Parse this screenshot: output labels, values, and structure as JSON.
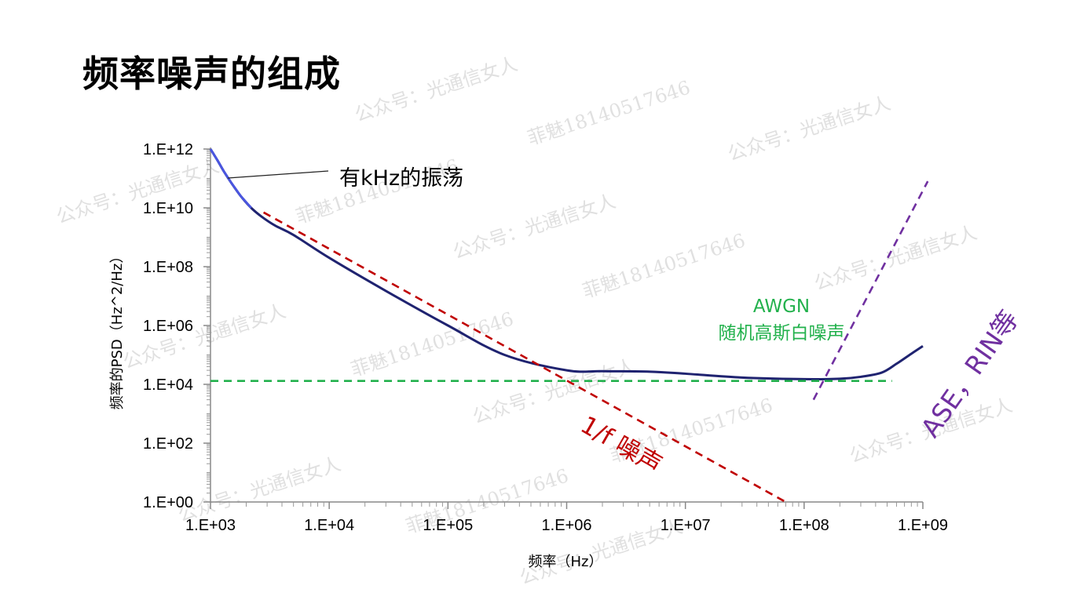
{
  "title": "频率噪声的组成",
  "chart_data": {
    "type": "line",
    "xscale": "log",
    "yscale": "log",
    "xlabel": "频率（Hz）",
    "ylabel": "频率的PSD（Hz^2/Hz）",
    "xlim": [
      1000,
      1000000000
    ],
    "ylim": [
      1,
      1000000000000
    ],
    "x_ticks": [
      "1.E+03",
      "1.E+04",
      "1.E+05",
      "1.E+06",
      "1.E+07",
      "1.E+08",
      "1.E+09"
    ],
    "y_ticks": [
      "1.E+00",
      "1.E+02",
      "1.E+04",
      "1.E+06",
      "1.E+08",
      "1.E+10",
      "1.E+12"
    ],
    "grid": false,
    "series": [
      {
        "color": "#1f2370",
        "style": "solid",
        "x": [
          1000,
          1150,
          1300,
          1500,
          1800,
          2200,
          2700,
          3500,
          5000,
          10000,
          30000,
          100000,
          300000,
          1000000,
          2000000,
          5000000,
          10000000,
          30000000,
          100000000,
          200000000,
          300000000,
          450000000,
          600000000,
          800000000,
          1000000000
        ],
        "y": [
          1000000000000,
          400000000000,
          170000000000,
          70000000000,
          25000000000,
          10000000000,
          5000000000,
          2500000000,
          1200000000,
          200000000,
          15000000,
          1000000,
          100000,
          30000,
          28000,
          27000,
          23000,
          17000,
          15000,
          15500,
          18000,
          25000,
          50000,
          110000,
          200000
        ]
      },
      {
        "color": "#c00000",
        "style": "dashed",
        "x": [
          2800,
          70000000
        ],
        "y": [
          7000000000,
          1
        ]
      },
      {
        "color": "#22b14c",
        "style": "dashed",
        "x": [
          1000,
          550000000
        ],
        "y": [
          13000,
          13000
        ]
      },
      {
        "color": "#7030a0",
        "style": "dashed",
        "x": [
          120000000,
          1100000000
        ],
        "y": [
          3000,
          80000000000
        ]
      }
    ],
    "annotations": {
      "oscillation": "有kHz的振荡",
      "awgn_line1": "AWGN",
      "awgn_line2": "随机高斯白噪声",
      "one_over_f": "1/f 噪声",
      "ase_rin": "ASE，RIN等"
    }
  },
  "watermark": {
    "account": "公众号：光通信女人",
    "name": "菲魅18140517646"
  }
}
